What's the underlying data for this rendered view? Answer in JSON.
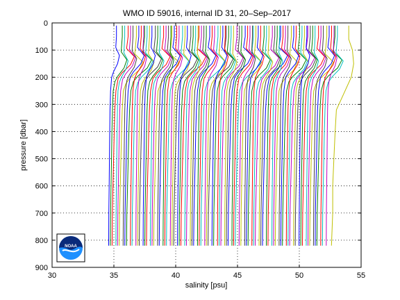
{
  "chart_data": {
    "type": "line",
    "title": "WMO ID 59016, internal ID 31, 20–Sep–2017",
    "xlabel": "salinity [psu]",
    "ylabel": "pressure [dbar]",
    "xlim": [
      30,
      55
    ],
    "ylim": [
      0,
      900
    ],
    "y_reversed": true,
    "grid": "dotted",
    "xticks": [
      30,
      35,
      40,
      45,
      50,
      55
    ],
    "yticks": [
      0,
      100,
      200,
      300,
      400,
      500,
      600,
      700,
      800,
      900
    ],
    "xtick_labels": [
      "30",
      "35",
      "40",
      "45",
      "50",
      "55"
    ],
    "ytick_labels": [
      "0",
      "100",
      "200",
      "300",
      "400",
      "500",
      "600",
      "700",
      "800",
      "900"
    ],
    "profile_count": 90,
    "profile_offset_step": 0.2,
    "first_profile_base_salinity": 34.7,
    "pressure_range": [
      10,
      820
    ],
    "series_colors": [
      "#0000ff",
      "#008000",
      "#ff0000",
      "#00bfbf",
      "#bf00bf",
      "#bfbf00",
      "#404040"
    ],
    "template_profile": {
      "pressure": [
        10,
        50,
        90,
        120,
        150,
        180,
        200,
        250,
        300,
        320,
        400,
        500,
        600,
        700,
        820
      ],
      "salinity_anomaly": [
        0.85,
        0.85,
        0.75,
        1.25,
        1.0,
        0.45,
        0.2,
        0.05,
        0.0,
        -0.02,
        -0.06,
        -0.1,
        -0.14,
        -0.18,
        -0.2
      ]
    },
    "last_profile": {
      "pressure": [
        10,
        60,
        100,
        150,
        200,
        250,
        300,
        320,
        400,
        500,
        600,
        700,
        820
      ],
      "salinity": [
        54.0,
        54.0,
        54.3,
        54.4,
        54.2,
        53.7,
        53.2,
        53.0,
        52.9,
        52.8,
        52.7,
        52.7,
        52.6
      ]
    }
  },
  "logo": {
    "name": "noaa-logo",
    "text": "NOAA",
    "colors": [
      "#0a2a7a",
      "#1e90ff",
      "#ffffff"
    ]
  }
}
